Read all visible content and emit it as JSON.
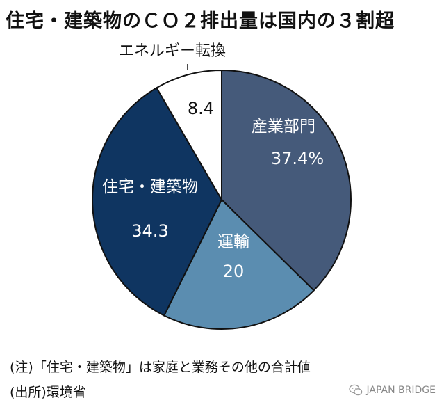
{
  "chart_data": {
    "type": "pie",
    "title": "住宅・建築物のＣＯ２排出量は国内の３割超",
    "unit": "%",
    "slices": [
      {
        "label": "産業部門",
        "value": 37.4,
        "value_text": "37.4%",
        "color": "#455A7A",
        "text_color": "#ffffff"
      },
      {
        "label": "運輸",
        "value": 20,
        "value_text": "20",
        "color": "#5B8DB0",
        "text_color": "#ffffff"
      },
      {
        "label": "住宅・建築物",
        "value": 34.3,
        "value_text": "34.3",
        "color": "#0F3561",
        "text_color": "#ffffff"
      },
      {
        "label": "エネルギー転換",
        "value": 8.4,
        "value_text": "8.4",
        "color": "#ffffff",
        "text_color": "#111111"
      }
    ],
    "start_angle_deg": 0,
    "direction": "clockwise",
    "legend": "none"
  },
  "notes": {
    "note1": "(注)「住宅・建築物」は家庭と業務その他の合計値",
    "note2": "(出所)環境省"
  },
  "watermark": {
    "text": "JAPAN BRIDGE",
    "icon": "wechat-icon"
  }
}
